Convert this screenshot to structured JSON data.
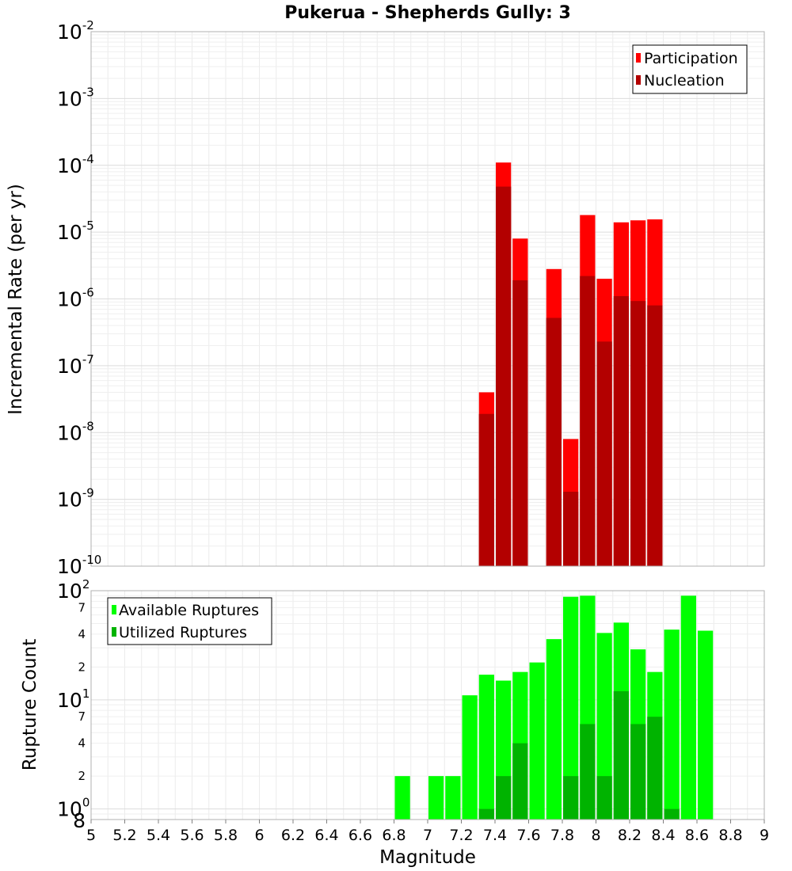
{
  "title": "Pukerua - Shepherds Gully: 3",
  "chart_data": [
    {
      "type": "bar",
      "name": "rate-chart",
      "ylabel": "Incremental Rate (per yr)",
      "yscale": "log",
      "ylim": [
        1e-10,
        0.01
      ],
      "xlim": [
        5,
        9
      ],
      "grid": true,
      "legend_position": "top-right",
      "y_major_ticks": [
        {
          "base": "10",
          "exp": "-10",
          "value": 1e-10
        },
        {
          "base": "10",
          "exp": "-9",
          "value": 1e-09
        },
        {
          "base": "10",
          "exp": "-8",
          "value": 1e-08
        },
        {
          "base": "10",
          "exp": "-7",
          "value": 1e-07
        },
        {
          "base": "10",
          "exp": "-6",
          "value": 1e-06
        },
        {
          "base": "10",
          "exp": "-5",
          "value": 1e-05
        },
        {
          "base": "10",
          "exp": "-4",
          "value": 0.0001
        },
        {
          "base": "10",
          "exp": "-3",
          "value": 0.001
        },
        {
          "base": "10",
          "exp": "-2",
          "value": 0.01
        }
      ],
      "series": [
        {
          "name": "Participation",
          "color": "#ff0000",
          "x": [
            7.35,
            7.45,
            7.55,
            7.75,
            7.85,
            7.95,
            8.05,
            8.15,
            8.25,
            8.35
          ],
          "values": [
            4e-08,
            0.00011,
            8e-06,
            2.8e-06,
            8e-09,
            1.8e-05,
            2e-06,
            1.4e-05,
            1.5e-05,
            1.55e-05
          ]
        },
        {
          "name": "Nucleation",
          "color": "#b30000",
          "x": [
            7.35,
            7.45,
            7.55,
            7.75,
            7.85,
            7.95,
            8.05,
            8.15,
            8.25,
            8.35
          ],
          "values": [
            1.9e-08,
            4.8e-05,
            1.9e-06,
            5.2e-07,
            1.3e-09,
            2.2e-06,
            2.3e-07,
            1.1e-06,
            9.3e-07,
            8e-07
          ]
        }
      ]
    },
    {
      "type": "bar",
      "name": "count-chart",
      "xlabel": "Magnitude",
      "ylabel": "Rupture Count",
      "yscale": "log",
      "ylim": [
        0.8,
        100
      ],
      "xlim": [
        5,
        9
      ],
      "grid": true,
      "legend_position": "top-left",
      "x_ticks": [
        "5",
        "5.2",
        "5.4",
        "5.6",
        "5.8",
        "6",
        "6.2",
        "6.4",
        "6.6",
        "6.8",
        "7",
        "7.2",
        "7.4",
        "7.6",
        "7.8",
        "8",
        "8.2",
        "8.4",
        "8.6",
        "8.8",
        "9"
      ],
      "y_major_ticks": [
        {
          "base": "10",
          "exp": "0",
          "value": 1
        },
        {
          "base": "10",
          "exp": "1",
          "value": 10
        },
        {
          "base": "10",
          "exp": "2",
          "value": 100
        }
      ],
      "y_minor_ticks": [
        {
          "label": "8",
          "value": 0.8
        },
        {
          "label": "2",
          "value": 2
        },
        {
          "label": "4",
          "value": 4
        },
        {
          "label": "7",
          "value": 7
        },
        {
          "label": "2",
          "value": 20
        },
        {
          "label": "4",
          "value": 40
        },
        {
          "label": "7",
          "value": 70
        }
      ],
      "series": [
        {
          "name": "Available Ruptures",
          "color": "#00ff00",
          "x": [
            6.85,
            7.05,
            7.15,
            7.25,
            7.35,
            7.45,
            7.55,
            7.65,
            7.75,
            7.85,
            7.95,
            8.05,
            8.15,
            8.25,
            8.35,
            8.45,
            8.55,
            8.65
          ],
          "values": [
            2,
            2,
            2,
            11,
            17,
            15,
            18,
            22,
            36,
            88,
            90,
            41,
            51,
            29,
            18,
            44,
            90,
            43
          ]
        },
        {
          "name": "Utilized Ruptures",
          "color": "#00b300",
          "x": [
            7.35,
            7.45,
            7.55,
            7.85,
            7.95,
            8.05,
            8.15,
            8.25,
            8.35,
            8.45
          ],
          "values": [
            1,
            2,
            4,
            2,
            6,
            2,
            12,
            6,
            7,
            1
          ]
        }
      ]
    }
  ]
}
